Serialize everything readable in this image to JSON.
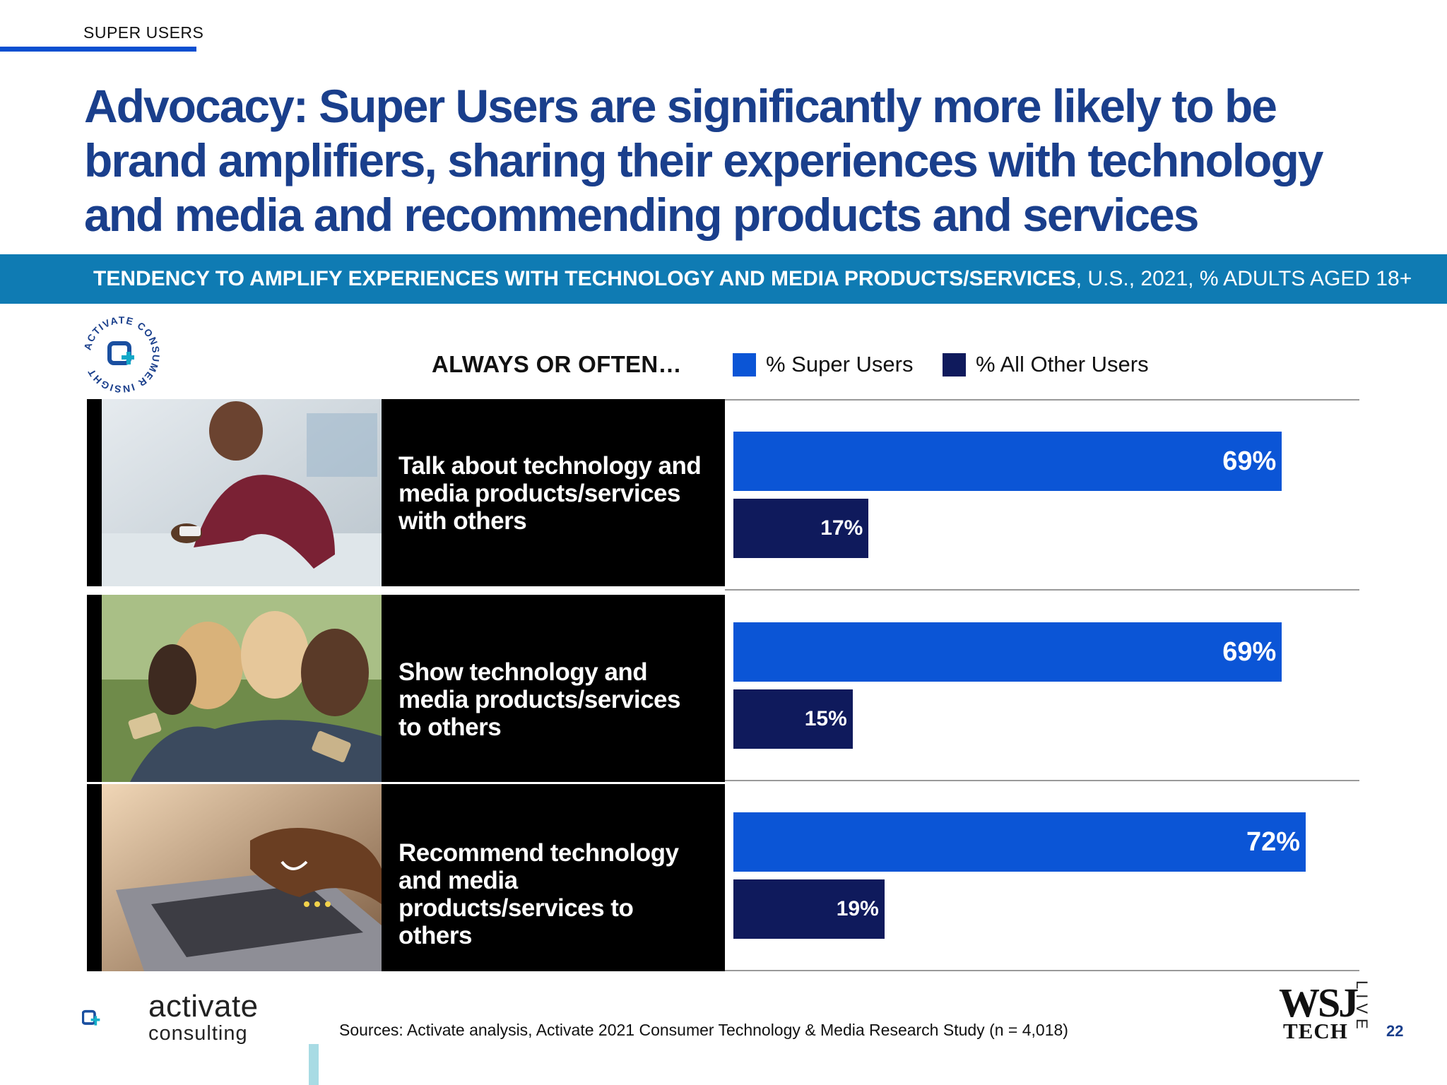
{
  "section": "SUPER USERS",
  "title": "Advocacy: Super Users are significantly more likely to be brand amplifiers, sharing their experiences with technology and media and recommending products and services",
  "banner": {
    "bold": "TENDENCY TO AMPLIFY EXPERIENCES WITH TECHNOLOGY AND MEDIA PRODUCTS/SERVICES",
    "rest": ", U.S., 2021, % ADULTS AGED 18+"
  },
  "badge": {
    "text": "ACTIVATE CONSUMER INSIGHT"
  },
  "chart_data": {
    "type": "bar",
    "orientation": "horizontal",
    "category_header": "ALWAYS OR OFTEN…",
    "categories": [
      "Talk about technology and media products/services with others",
      "Show technology and media products/services to others",
      "Recommend technology and media products/services to others"
    ],
    "series": [
      {
        "name": "% Super Users",
        "color": "#0b55d6",
        "values": [
          69,
          69,
          72
        ],
        "labels": [
          "69%",
          "69%",
          "72%"
        ]
      },
      {
        "name": "% All Other Users",
        "color": "#0f1a5c",
        "values": [
          17,
          15,
          19
        ],
        "labels": [
          "17%",
          "15%",
          "19%"
        ]
      }
    ],
    "legend": "top",
    "xlim": [
      0,
      78
    ],
    "grid": false
  },
  "footer": {
    "logo_main": "activate",
    "logo_sub": "consulting",
    "source": "Sources: Activate analysis, Activate 2021 Consumer Technology & Media Research Study (n = 4,018)",
    "wsj": "WSJ",
    "wsj_tech": "TECH",
    "wsj_live": "LIVE",
    "page": "22"
  }
}
